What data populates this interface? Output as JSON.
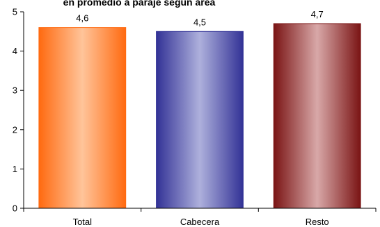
{
  "header_fragment": "en promedio a paraje según área",
  "chart_data": {
    "type": "bar",
    "title": "",
    "xlabel": "",
    "ylabel": "",
    "categories": [
      "Total",
      "Cabecera",
      "Resto"
    ],
    "values": [
      4.6,
      4.5,
      4.7
    ],
    "data_labels": [
      "4,6",
      "4,5",
      "4,7"
    ],
    "ylim": [
      0,
      5
    ],
    "yticks": [
      0,
      1,
      2,
      3,
      4,
      5
    ],
    "ytick_labels": [
      "0",
      "1",
      "2",
      "3",
      "4",
      "5"
    ],
    "grid": false,
    "legend": "none",
    "bar_colors": [
      {
        "edge": "#ff6a10",
        "center": "#ffc49a"
      },
      {
        "edge": "#323296",
        "center": "#aeb0dc"
      },
      {
        "edge": "#7a1414",
        "center": "#d8a8a8"
      }
    ]
  }
}
